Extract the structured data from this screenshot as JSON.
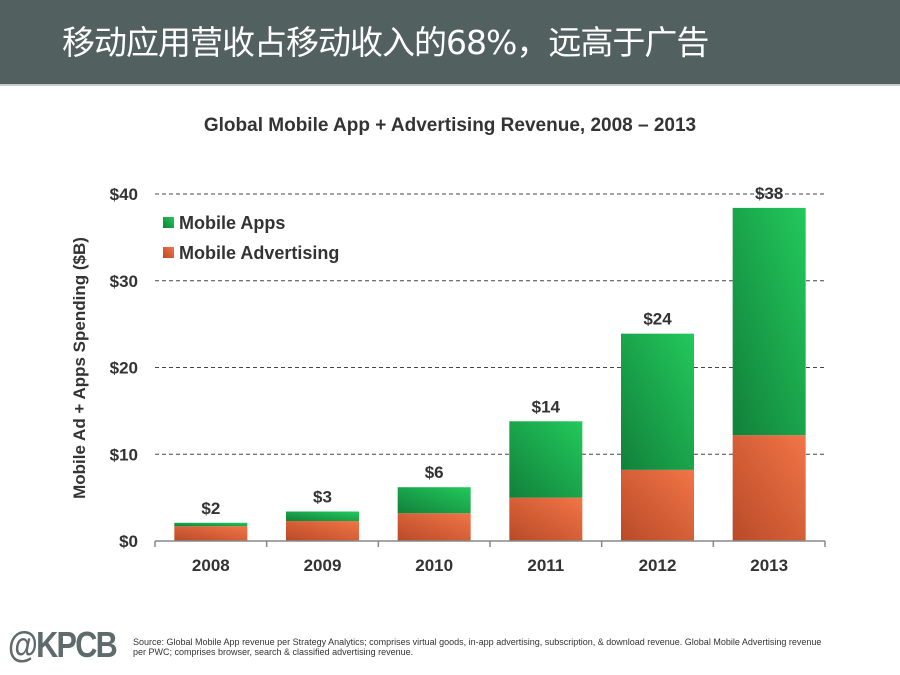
{
  "header": {
    "title": "移动应用营收占移动收入的68%，远高于广告"
  },
  "chart_data": {
    "type": "bar",
    "stacked": true,
    "title": "Global Mobile App + Advertising Revenue, 2008 – 2013",
    "xlabel": "",
    "ylabel": "Mobile Ad + Apps Spending ($B)",
    "ylim": [
      0,
      40
    ],
    "yticks": [
      0,
      10,
      20,
      30,
      40
    ],
    "ytick_labels": [
      "$0",
      "$10",
      "$20",
      "$30",
      "$40"
    ],
    "grid": "dashed horizontal",
    "legend_position": "top-left",
    "categories": [
      "2008",
      "2009",
      "2010",
      "2011",
      "2012",
      "2013"
    ],
    "series": [
      {
        "name": "Mobile Advertising",
        "color": "#e8663a",
        "values": [
          1.7,
          2.3,
          3.2,
          5.0,
          8.2,
          12.2
        ]
      },
      {
        "name": "Mobile Apps",
        "color": "#1fb451",
        "values": [
          0.4,
          1.1,
          3.0,
          8.8,
          15.7,
          26.2
        ]
      }
    ],
    "totals": [
      2.1,
      3.4,
      6.2,
      13.8,
      23.9,
      38.4
    ],
    "total_labels": [
      "$2",
      "$3",
      "$6",
      "$14",
      "$24",
      "$38"
    ],
    "legend": [
      "Mobile Apps",
      "Mobile Advertising"
    ]
  },
  "footer": {
    "logo": "@KPCB",
    "source": "Source: Global Mobile App revenue per Strategy Analytics; comprises virtual goods, in-app advertising, subscription, & download revenue. Global Mobile Advertising revenue per PWC; comprises browser, search & classified advertising revenue."
  }
}
